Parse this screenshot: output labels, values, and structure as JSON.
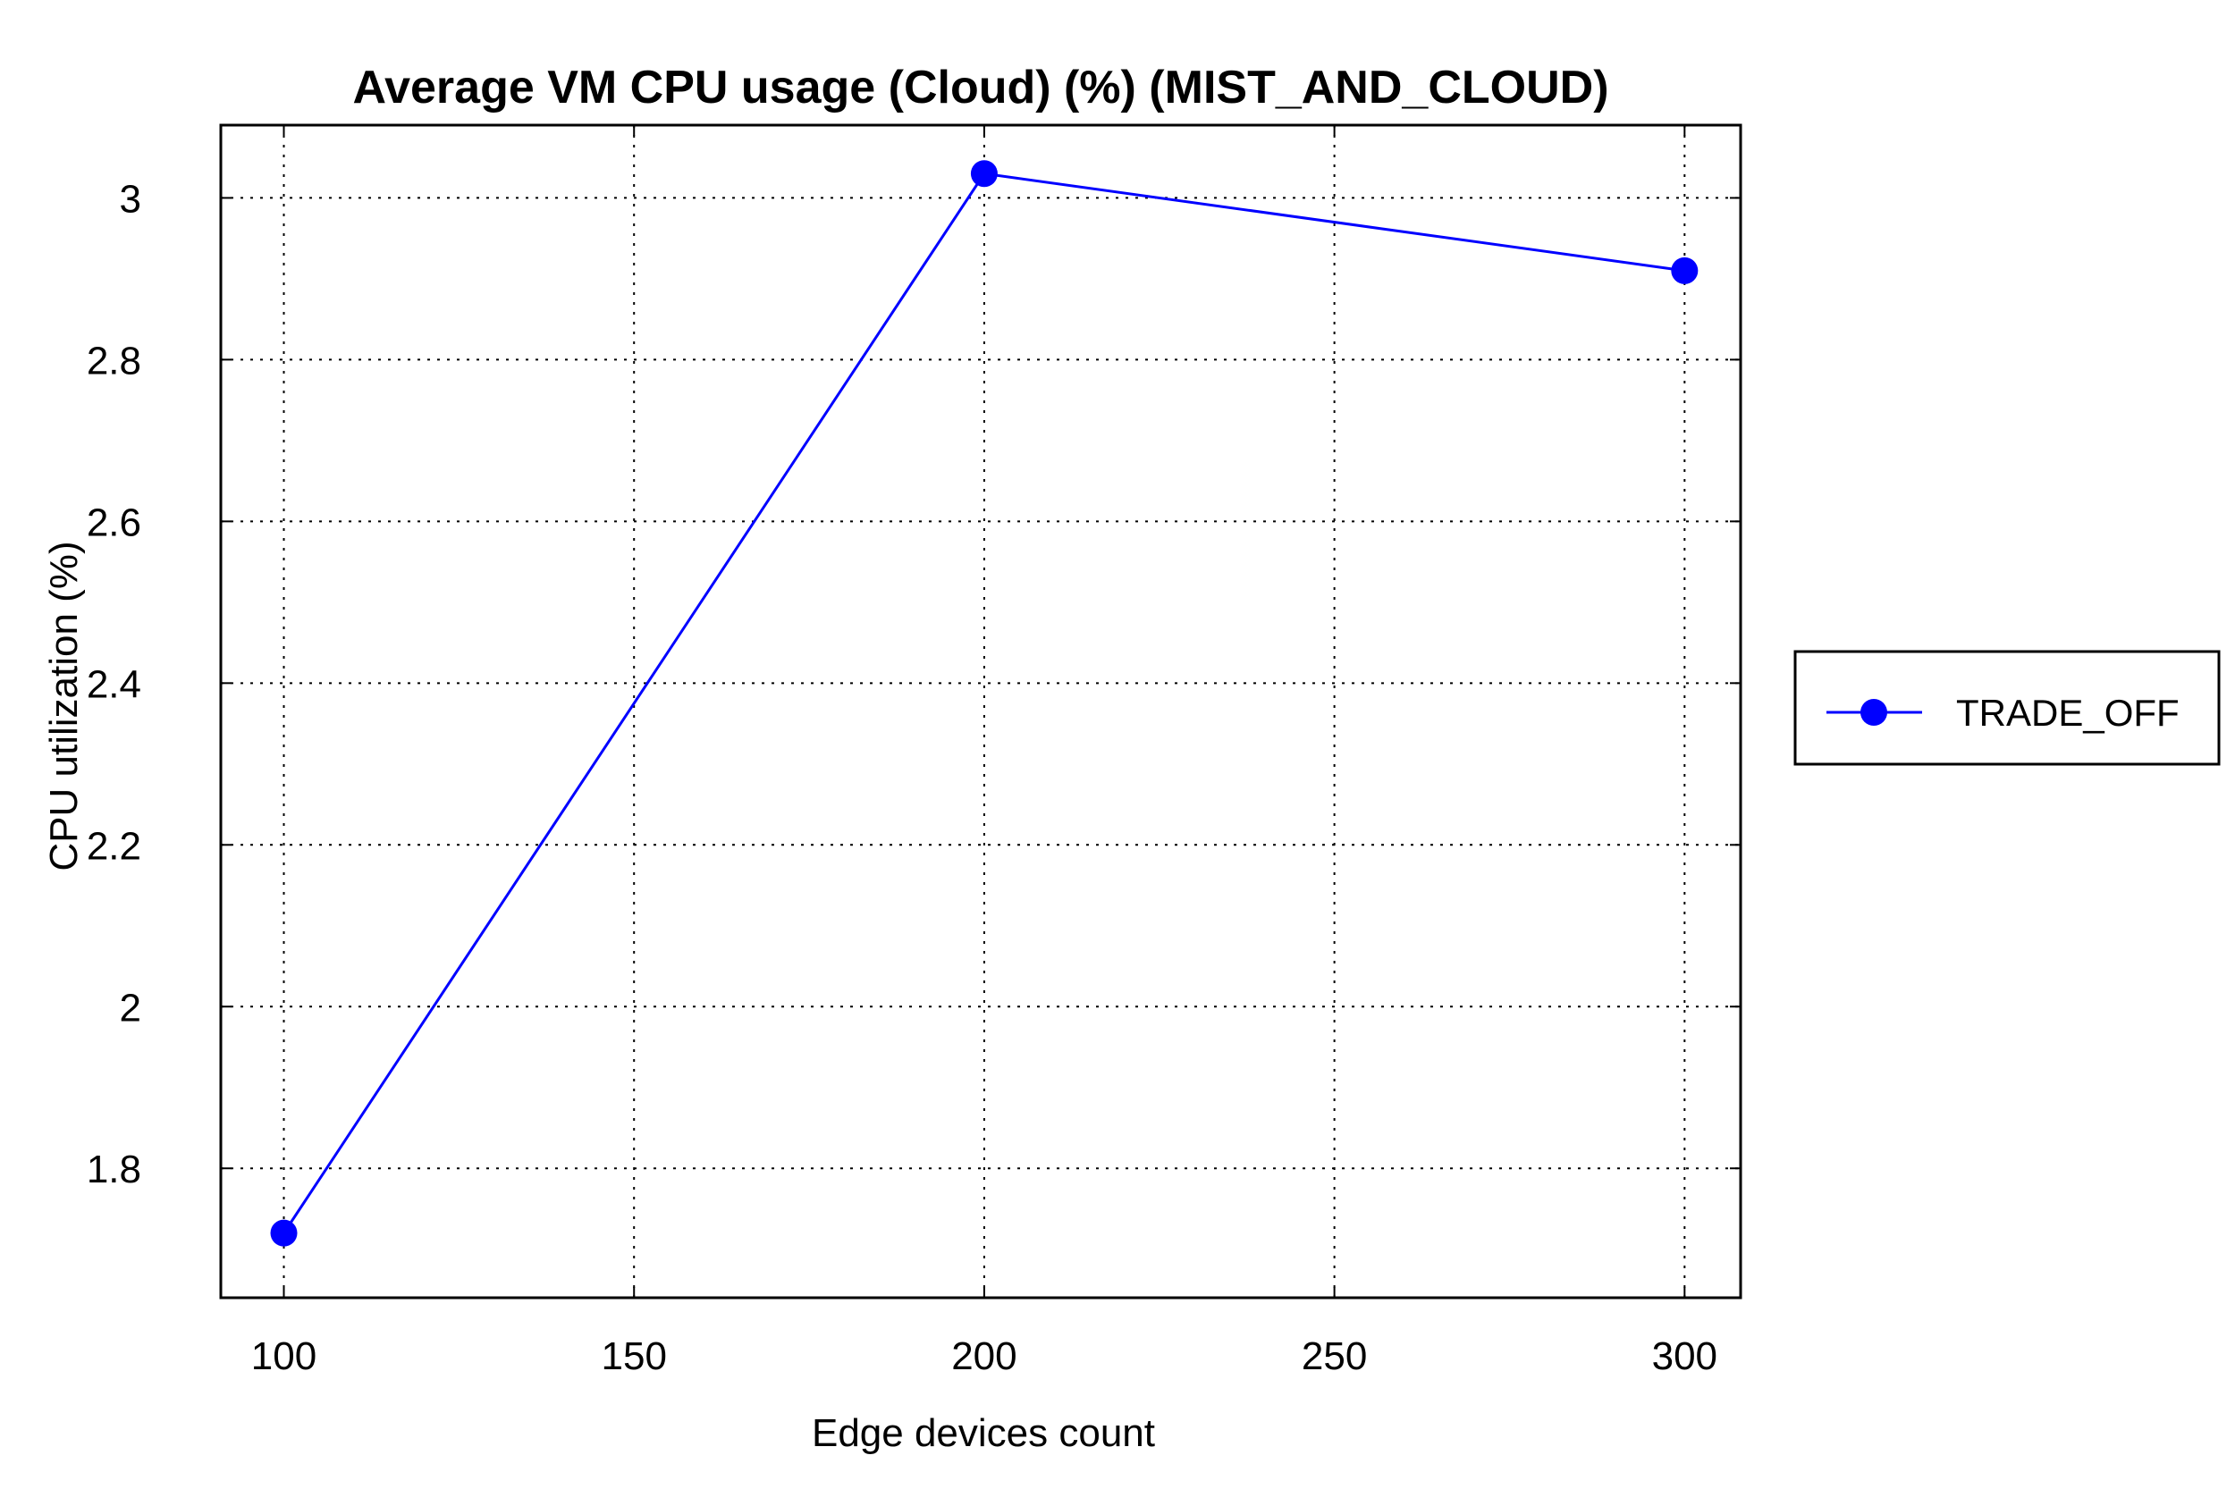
{
  "chart_data": {
    "type": "line",
    "title": "Average VM CPU usage (Cloud) (%) (MIST_AND_CLOUD)",
    "xlabel": "Edge devices count",
    "ylabel": "CPU utilization (%)",
    "xlim": [
      91,
      308
    ],
    "ylim": [
      1.64,
      3.09
    ],
    "x_ticks": [
      100,
      150,
      200,
      250,
      300
    ],
    "y_ticks": [
      1.8,
      2,
      2.2,
      2.4,
      2.6,
      2.8,
      3
    ],
    "grid": true,
    "legend_position": "right",
    "series": [
      {
        "name": "TRADE_OFF",
        "color": "#0000ff",
        "marker": "circle",
        "x": [
          100,
          200,
          300
        ],
        "y": [
          1.72,
          3.03,
          2.91
        ]
      }
    ]
  }
}
